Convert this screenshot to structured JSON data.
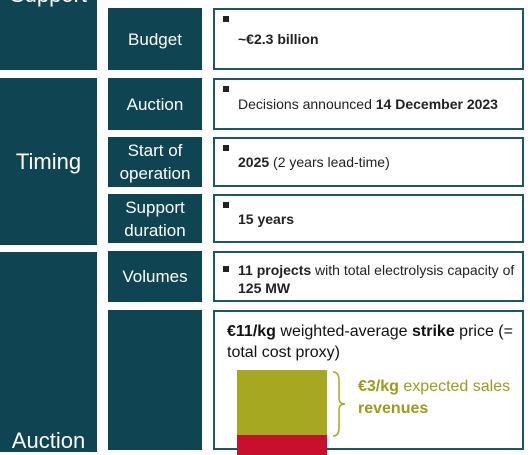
{
  "groups": [
    {
      "label": "Support"
    },
    {
      "label": "Timing"
    },
    {
      "label": "Auction"
    }
  ],
  "rows": [
    {
      "label": "Budget",
      "detail": [
        "~€2.3 billion"
      ]
    },
    {
      "label": "Auction",
      "detail": [
        "Decisions announced ",
        "14 December 2023"
      ]
    },
    {
      "label": "Start of operation",
      "detail": [
        "2025",
        " (2 years lead-time)"
      ]
    },
    {
      "label": "Support duration",
      "detail": [
        "15 years"
      ]
    },
    {
      "label": "Volumes",
      "detail": [
        "11 projects",
        " with total electrolysis capacity of ",
        "125 MW"
      ]
    }
  ],
  "price": {
    "text": [
      "€11/kg",
      " weighted-average ",
      "strike",
      " price (= total cost proxy)"
    ],
    "annotation": [
      "€3/kg",
      " expected sales ",
      "revenues"
    ]
  }
}
